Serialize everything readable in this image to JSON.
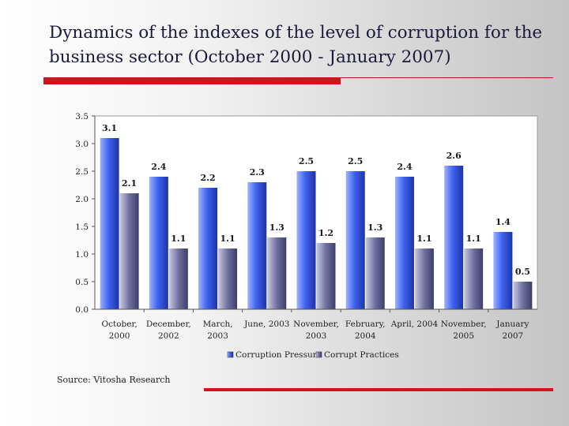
{
  "slide": {
    "title": "Dynamics of the indexes of the level of corruption for the business sector (October 2000 - January 2007)",
    "source": "Source: Vitosha Research"
  },
  "colors": {
    "accent_red": "#d0151a",
    "series_pressure": "#3a5bd9",
    "series_practices": "#6a6a9a"
  },
  "chart_data": {
    "type": "bar",
    "title": "",
    "xlabel": "",
    "ylabel": "",
    "ylim": [
      0,
      3.5
    ],
    "yticks": [
      "0.0",
      "0.5",
      "1.0",
      "1.5",
      "2.0",
      "2.5",
      "3.0",
      "3.5"
    ],
    "grid": false,
    "legend_position": "bottom",
    "categories": [
      [
        "October,",
        "2000"
      ],
      [
        "December,",
        "2002"
      ],
      [
        "March,",
        "2003"
      ],
      [
        "June, 2003"
      ],
      [
        "November,",
        "2003"
      ],
      [
        "February,",
        "2004"
      ],
      [
        "April, 2004"
      ],
      [
        "November,",
        "2005"
      ],
      [
        "January",
        "2007"
      ]
    ],
    "series": [
      {
        "name": "Corruption Pressure",
        "values": [
          3.1,
          2.4,
          2.2,
          2.3,
          2.5,
          2.5,
          2.4,
          2.6,
          1.4
        ]
      },
      {
        "name": "Corrupt Practices",
        "values": [
          2.1,
          1.1,
          1.1,
          1.3,
          1.2,
          1.3,
          1.1,
          1.1,
          0.5
        ]
      }
    ]
  }
}
